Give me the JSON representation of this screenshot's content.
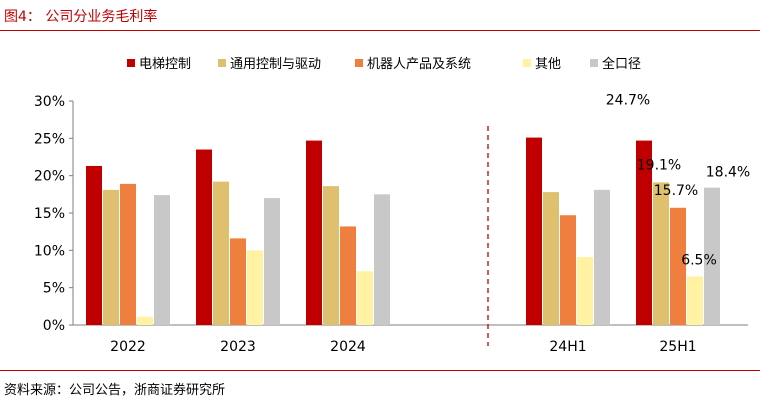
{
  "figure_title": "图4： 公司分业务毛利率",
  "source": "资料来源：公司公告，浙商证券研究所",
  "chart_data": {
    "type": "bar",
    "categories": [
      "2022",
      "2023",
      "2024",
      "24H1",
      "25H1"
    ],
    "series": [
      {
        "name": "电梯控制",
        "color": "#c00000",
        "values": [
          21.3,
          23.5,
          24.7,
          25.1,
          24.7
        ]
      },
      {
        "name": "通用控制与驱动",
        "color": "#dfc06f",
        "values": [
          18.1,
          19.2,
          18.6,
          17.8,
          19.1
        ]
      },
      {
        "name": "机器人产品及系统",
        "color": "#ee7f3e",
        "values": [
          18.9,
          11.6,
          13.2,
          14.7,
          15.7
        ]
      },
      {
        "name": "其他",
        "color": "#fff2a2",
        "values": [
          1.1,
          10.0,
          7.2,
          9.1,
          6.5
        ]
      },
      {
        "name": "全口径",
        "color": "#c8c8c8",
        "values": [
          17.4,
          17.0,
          17.5,
          18.1,
          18.4
        ]
      }
    ],
    "data_labels": [
      {
        "category": "25H1",
        "series": "电梯控制",
        "text": "24.7%"
      },
      {
        "category": "25H1",
        "series": "通用控制与驱动",
        "text": "19.1%"
      },
      {
        "category": "25H1",
        "series": "机器人产品及系统",
        "text": "15.7%"
      },
      {
        "category": "25H1",
        "series": "其他",
        "text": "6.5%"
      },
      {
        "category": "25H1",
        "series": "全口径",
        "text": "18.4%"
      }
    ],
    "y_ticks": [
      "0%",
      "5%",
      "10%",
      "15%",
      "20%",
      "25%",
      "30%"
    ],
    "ylim": [
      0,
      30
    ],
    "legend_position": "top",
    "grid": false,
    "divider": "dashed vertical line between 2024 and 24H1",
    "xlabel": "",
    "ylabel": ""
  }
}
